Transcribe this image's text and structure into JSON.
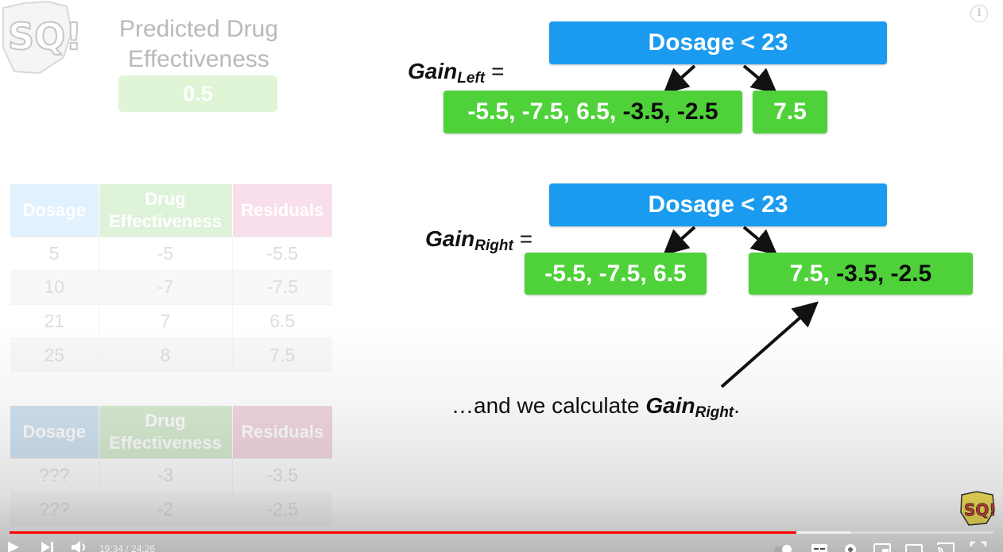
{
  "slide": {
    "predicted": {
      "title_line1": "Predicted Drug",
      "title_line2": "Effectiveness",
      "value": "0.5"
    },
    "table1": {
      "headers": {
        "dosage": "Dosage",
        "effect_line1": "Drug",
        "effect_line2": "Effectiveness",
        "residuals": "Residuals"
      },
      "rows": [
        {
          "dosage": "5",
          "effect": "-5",
          "residual": "-5.5"
        },
        {
          "dosage": "10",
          "effect": "-7",
          "residual": "-7.5"
        },
        {
          "dosage": "21",
          "effect": "7",
          "residual": "6.5"
        },
        {
          "dosage": "25",
          "effect": "8",
          "residual": "7.5"
        }
      ]
    },
    "table2": {
      "headers": {
        "dosage": "Dosage",
        "effect_line1": "Drug",
        "effect_line2": "Effectiveness",
        "residuals": "Residuals"
      },
      "rows": [
        {
          "dosage": "???",
          "effect": "-3",
          "residual": "-3.5"
        },
        {
          "dosage": "???",
          "effect": "-2",
          "residual": "-2.5"
        }
      ]
    },
    "tree_left": {
      "gain_label": "Gain",
      "gain_sub": "Left",
      "eq": "=",
      "node": "Dosage < 23",
      "leaf_left_a": "-5.5, -7.5, 6.5,",
      "leaf_left_b": "-3.5, -2.5",
      "leaf_right": "7.5"
    },
    "tree_right": {
      "gain_label": "Gain",
      "gain_sub": "Right",
      "eq": "=",
      "node": "Dosage < 23",
      "leaf_left": "-5.5, -7.5, 6.5",
      "leaf_right_a": "7.5,",
      "leaf_right_b": "-3.5, -2.5"
    },
    "caption": {
      "pre": "…and we calculate ",
      "gain": "Gain",
      "sub": "Right",
      "post": "."
    },
    "colors": {
      "node": "#1a9bf0",
      "leaf": "#4fd13a"
    }
  },
  "player": {
    "current_time": "19:34",
    "separator": " / ",
    "duration": "24:26",
    "progress": 0.8,
    "buffered": 0.855,
    "icons": [
      "play-icon",
      "next-icon",
      "volume-icon",
      "autoplay-toggle-icon",
      "subtitles-icon",
      "settings-icon",
      "miniplayer-icon",
      "theater-icon",
      "cast-icon",
      "fullscreen-icon",
      "info-icon"
    ]
  }
}
